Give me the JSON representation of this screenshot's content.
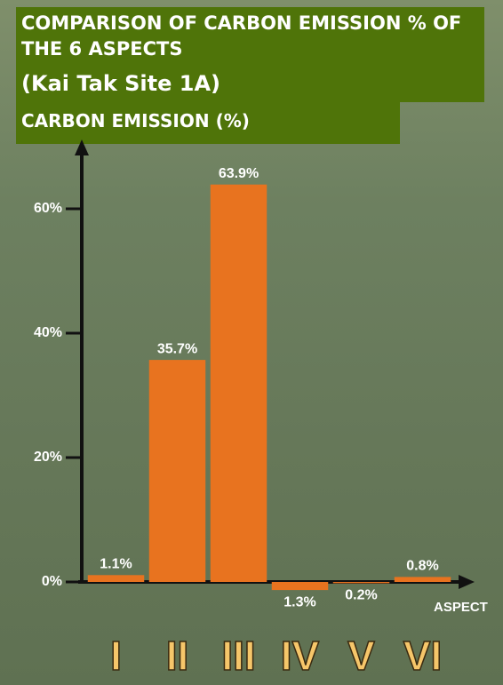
{
  "chart_data": {
    "type": "bar",
    "title": "COMPARISON OF CARBON EMISSION % OF THE 6 ASPECTS",
    "subtitle": "(Kai Tak Site 1A)",
    "y_label": "CARBON EMISSION (%)",
    "x_label": "ASPECT",
    "categories": [
      "I",
      "II",
      "III",
      "IV",
      "V",
      "VI"
    ],
    "values": [
      1.1,
      35.7,
      63.9,
      -1.3,
      -0.2,
      0.8
    ],
    "value_labels": [
      "1.1%",
      "35.7%",
      "63.9%",
      "1.3%",
      "0.2%",
      "0.8%"
    ],
    "color": "#e8731f",
    "ylim": [
      -6,
      70
    ],
    "yticks": [
      {
        "value": 0,
        "label": "0%"
      },
      {
        "value": 20,
        "label": "20%"
      },
      {
        "value": 40,
        "label": "40%"
      },
      {
        "value": 60,
        "label": "60%"
      }
    ],
    "grid": false
  }
}
